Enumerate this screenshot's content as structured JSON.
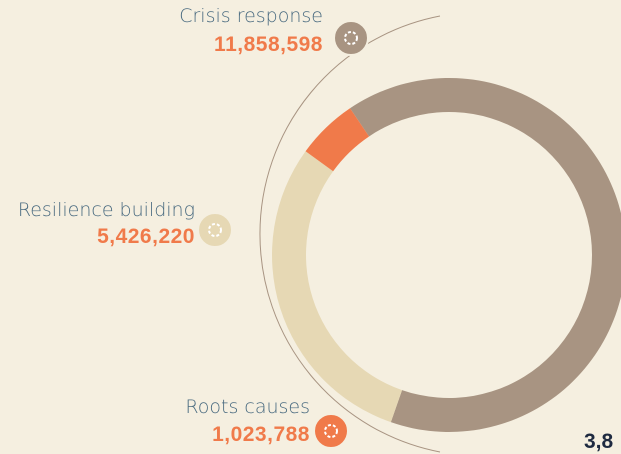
{
  "chart_data": {
    "type": "donut",
    "categories": [
      "Crisis response",
      "Resilience building",
      "Roots causes"
    ],
    "values": [
      11858598,
      5426220,
      1023788
    ],
    "value_labels": [
      "11,858,598",
      "5,426,220",
      "1,023,788"
    ],
    "colors": [
      "#a89482",
      "#e6d8b4",
      "#f07a4a"
    ],
    "total_fragment": "3,8"
  }
}
